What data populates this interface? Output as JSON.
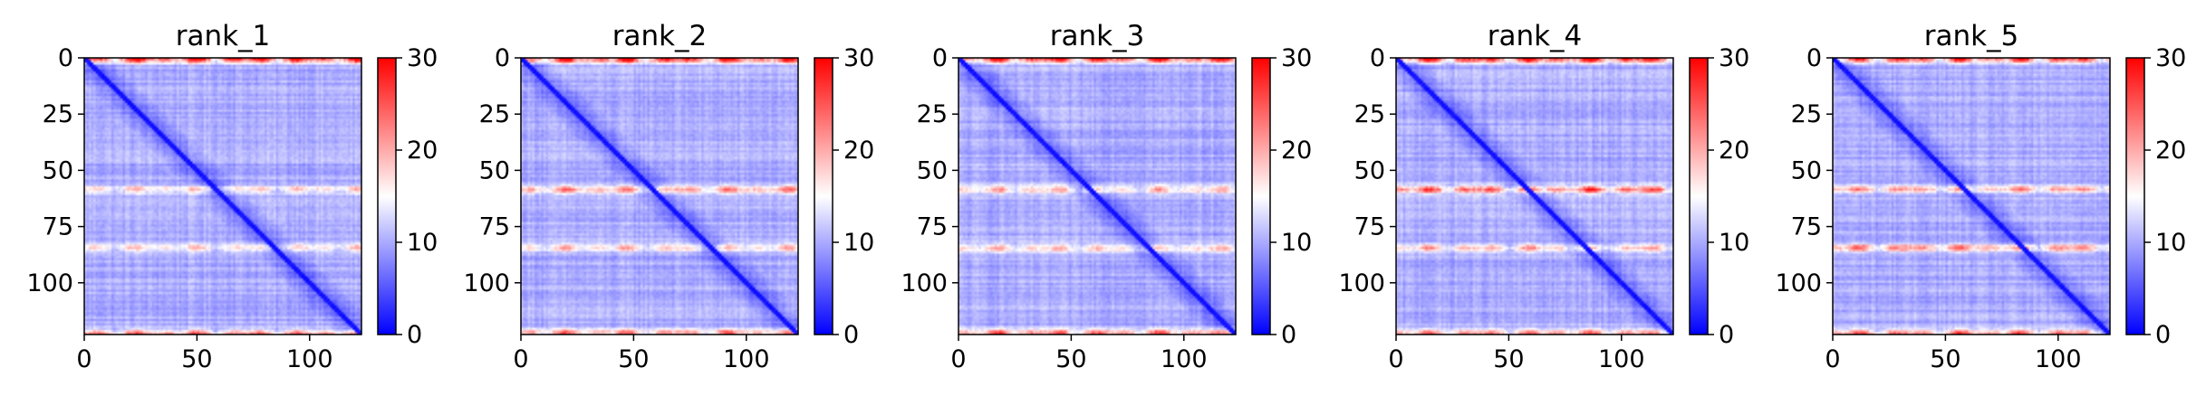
{
  "chart_data": [
    {
      "type": "heatmap",
      "title": "rank_1",
      "n": 123,
      "xticks": [
        0,
        50,
        100
      ],
      "yticks": [
        0,
        25,
        50,
        75,
        100
      ],
      "xlim": [
        0,
        123
      ],
      "ylim": [
        123,
        0
      ],
      "colorbar": {
        "ticks": [
          0,
          10,
          20,
          30
        ],
        "range": [
          0,
          30
        ],
        "colormap": "bwr"
      },
      "high_rows": [
        {
          "row": 0,
          "value": 27
        },
        {
          "row": 58,
          "value": 15
        },
        {
          "row": 84,
          "value": 15
        },
        {
          "row": 122,
          "value": 20
        }
      ]
    },
    {
      "type": "heatmap",
      "title": "rank_2",
      "n": 123,
      "xticks": [
        0,
        50,
        100
      ],
      "yticks": [
        0,
        25,
        50,
        75,
        100
      ],
      "xlim": [
        0,
        123
      ],
      "ylim": [
        123,
        0
      ],
      "colorbar": {
        "ticks": [
          0,
          10,
          20,
          30
        ],
        "range": [
          0,
          30
        ],
        "colormap": "bwr"
      },
      "high_rows": [
        {
          "row": 0,
          "value": 26
        },
        {
          "row": 58,
          "value": 18
        },
        {
          "row": 84,
          "value": 16
        },
        {
          "row": 122,
          "value": 21
        }
      ]
    },
    {
      "type": "heatmap",
      "title": "rank_3",
      "n": 123,
      "xticks": [
        0,
        50,
        100
      ],
      "yticks": [
        0,
        25,
        50,
        75,
        100
      ],
      "xlim": [
        0,
        123
      ],
      "ylim": [
        123,
        0
      ],
      "colorbar": {
        "ticks": [
          0,
          10,
          20,
          30
        ],
        "range": [
          0,
          30
        ],
        "colormap": "bwr"
      },
      "high_rows": [
        {
          "row": 0,
          "value": 25
        },
        {
          "row": 58,
          "value": 17
        },
        {
          "row": 84,
          "value": 16
        },
        {
          "row": 122,
          "value": 22
        }
      ]
    },
    {
      "type": "heatmap",
      "title": "rank_4",
      "n": 123,
      "xticks": [
        0,
        50,
        100
      ],
      "yticks": [
        0,
        25,
        50,
        75,
        100
      ],
      "xlim": [
        0,
        123
      ],
      "ylim": [
        123,
        0
      ],
      "colorbar": {
        "ticks": [
          0,
          10,
          20,
          30
        ],
        "range": [
          0,
          30
        ],
        "colormap": "bwr"
      },
      "high_rows": [
        {
          "row": 0,
          "value": 27
        },
        {
          "row": 58,
          "value": 23
        },
        {
          "row": 84,
          "value": 18
        },
        {
          "row": 122,
          "value": 21
        }
      ]
    },
    {
      "type": "heatmap",
      "title": "rank_5",
      "n": 123,
      "xticks": [
        0,
        50,
        100
      ],
      "yticks": [
        0,
        25,
        50,
        75,
        100
      ],
      "xlim": [
        0,
        123
      ],
      "ylim": [
        123,
        0
      ],
      "colorbar": {
        "ticks": [
          0,
          10,
          20,
          30
        ],
        "range": [
          0,
          30
        ],
        "colormap": "bwr"
      },
      "high_rows": [
        {
          "row": 0,
          "value": 26
        },
        {
          "row": 58,
          "value": 18
        },
        {
          "row": 84,
          "value": 20
        },
        {
          "row": 122,
          "value": 22
        }
      ]
    }
  ],
  "colors": {
    "low": "#0000ff",
    "mid": "#ffffff",
    "high": "#ff0000"
  }
}
